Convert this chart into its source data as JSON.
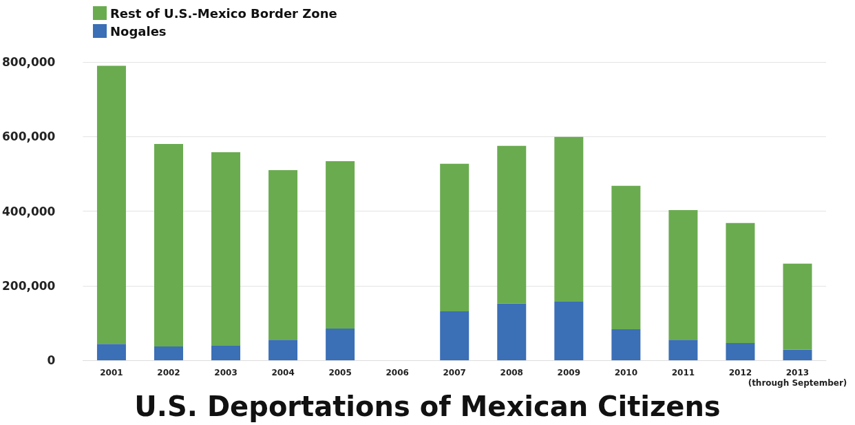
{
  "chart_data": {
    "type": "bar",
    "title": "U.S. Deportations of Mexican Citizens",
    "categories": [
      "2001",
      "2002",
      "2003",
      "2004",
      "2005",
      "2006",
      "2007",
      "2008",
      "2009",
      "2010",
      "2011",
      "2012",
      "2013\n(through September)"
    ],
    "series": [
      {
        "name": "Nogales",
        "color": "#3b6fb6",
        "values": [
          44000,
          37000,
          39000,
          55000,
          85000,
          null,
          131000,
          152000,
          157000,
          83000,
          55000,
          46000,
          28000
        ]
      },
      {
        "name": "Rest of U.S.-Mexico Border Zone",
        "color": "#6aab50",
        "values": [
          746000,
          543000,
          519000,
          455000,
          449000,
          null,
          396000,
          423000,
          442000,
          385000,
          348000,
          322000,
          231000
        ]
      }
    ],
    "stacked": true,
    "ylim": [
      0,
      800000
    ],
    "yticks": [
      0,
      {
        "value": 200000,
        "label": "200,000"
      },
      {
        "value": 400000,
        "label": "400,000"
      },
      {
        "value": 600000,
        "label": "600,000"
      },
      {
        "value": 800000,
        "label": "800,000"
      }
    ],
    "grid": "y",
    "legend": "top left"
  }
}
